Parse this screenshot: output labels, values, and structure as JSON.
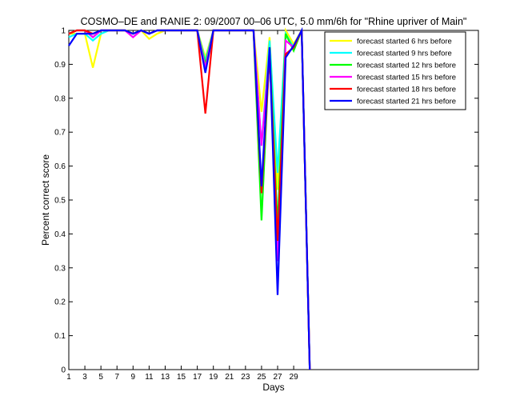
{
  "chart_data": {
    "type": "line",
    "title": "COSMO–DE and RANIE 2: 09/2007 00–06 UTC, 5.0 mm/6h for \"Rhine upriver of Main\"",
    "xlabel": "Days",
    "ylabel": "Percent correct score",
    "xlim": [
      1,
      52
    ],
    "ylim": [
      0,
      1
    ],
    "xticks": [
      1,
      3,
      5,
      7,
      9,
      11,
      13,
      15,
      17,
      19,
      21,
      23,
      25,
      27,
      29
    ],
    "yticks": [
      0,
      0.1,
      0.2,
      0.3,
      0.4,
      0.5,
      0.6,
      0.7,
      0.8,
      0.9,
      1
    ],
    "grid": false,
    "legend_position": "top-right",
    "x": [
      1,
      2,
      3,
      4,
      5,
      6,
      7,
      8,
      9,
      10,
      11,
      12,
      13,
      14,
      15,
      16,
      17,
      18,
      19,
      20,
      21,
      22,
      23,
      24,
      25,
      26,
      27,
      28,
      29,
      30,
      31
    ],
    "series": [
      {
        "name": "forecast started 6 hrs before",
        "color": "#ffff00",
        "values": [
          0.99,
          0.99,
          0.99,
          0.89,
          0.99,
          1,
          1,
          1,
          0.99,
          1,
          0.975,
          0.99,
          1,
          1,
          1,
          1,
          1,
          0.92,
          1,
          1,
          1,
          1,
          1,
          1,
          0.76,
          0.98,
          0.53,
          1,
          0.96,
          1,
          0
        ]
      },
      {
        "name": "forecast started 9 hrs before",
        "color": "#00ffff",
        "values": [
          0.98,
          0.99,
          0.99,
          0.97,
          0.99,
          1,
          1,
          1,
          0.99,
          1,
          0.99,
          1,
          1,
          1,
          1,
          1,
          1,
          0.91,
          1,
          1,
          1,
          1,
          1,
          1,
          0.66,
          0.97,
          0.58,
          0.99,
          0.95,
          1,
          0
        ]
      },
      {
        "name": "forecast started 12 hrs before",
        "color": "#00ff00",
        "values": [
          0.99,
          1,
          1,
          0.98,
          1,
          1,
          1,
          1,
          0.99,
          1,
          0.99,
          1,
          1,
          1,
          1,
          1,
          1,
          0.9,
          1,
          1,
          1,
          1,
          1,
          1,
          0.44,
          0.95,
          0.42,
          0.99,
          0.94,
          1,
          0
        ]
      },
      {
        "name": "forecast started 15 hrs before",
        "color": "#ff00ff",
        "values": [
          0.99,
          1,
          1,
          0.98,
          1,
          1,
          1,
          1,
          0.98,
          1,
          0.99,
          1,
          1,
          1,
          1,
          1,
          1,
          0.89,
          1,
          1,
          1,
          1,
          1,
          1,
          0.66,
          0.94,
          0.32,
          0.97,
          0.95,
          1,
          0
        ]
      },
      {
        "name": "forecast started 18 hrs before",
        "color": "#ff0000",
        "values": [
          0.99,
          1,
          1,
          0.99,
          1,
          1,
          1,
          1,
          0.99,
          1,
          0.99,
          1,
          1,
          1,
          1,
          1,
          1,
          0.755,
          1,
          1,
          1,
          1,
          1,
          1,
          0.52,
          0.93,
          0.38,
          0.93,
          0.95,
          1,
          0
        ]
      },
      {
        "name": "forecast started 21 hrs before",
        "color": "#0000ff",
        "values": [
          0.955,
          0.99,
          0.99,
          0.99,
          1,
          1,
          1,
          1,
          0.99,
          1,
          0.99,
          1,
          1,
          1,
          1,
          1,
          1,
          0.875,
          1,
          1,
          1,
          1,
          1,
          1,
          0.54,
          0.95,
          0.22,
          0.92,
          0.955,
          1,
          0
        ]
      }
    ]
  }
}
